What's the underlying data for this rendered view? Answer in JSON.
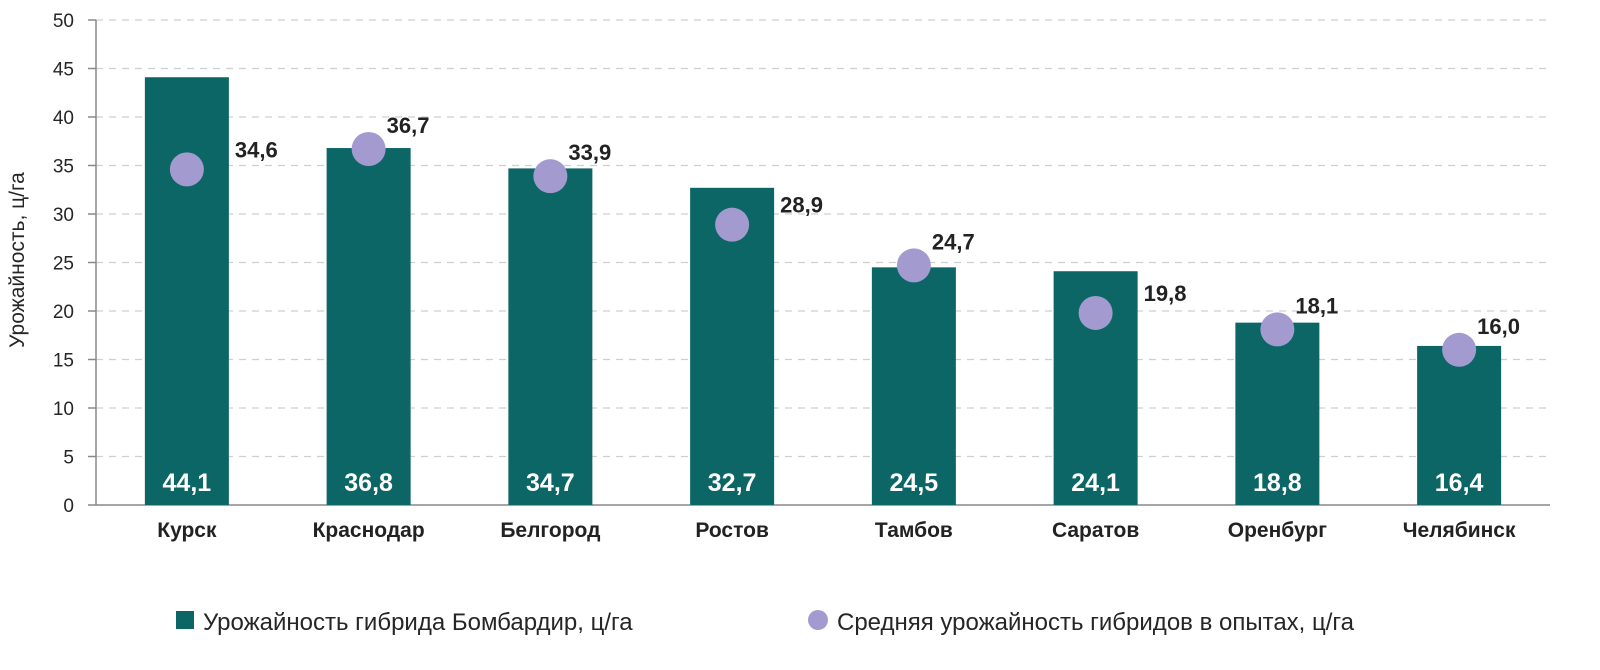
{
  "chart_data": {
    "type": "bar",
    "ylabel": "Урожайность, ц/га",
    "ylim": [
      0,
      50
    ],
    "yticks": [
      0,
      5,
      10,
      15,
      20,
      25,
      30,
      35,
      40,
      45,
      50
    ],
    "grid": true,
    "legend_position": "bottom",
    "categories": [
      "Курск",
      "Краснодар",
      "Белгород",
      "Ростов",
      "Тамбов",
      "Саратов",
      "Оренбург",
      "Челябинск"
    ],
    "series": [
      {
        "name": "Урожайность гибрида Бомбардир, ц/га",
        "kind": "bar",
        "color": "#0c6666",
        "values": [
          44.1,
          36.8,
          34.7,
          32.7,
          24.5,
          24.1,
          18.8,
          16.4
        ],
        "labels": [
          "44,1",
          "36,8",
          "34,7",
          "32,7",
          "24,5",
          "24,1",
          "18,8",
          "16,4"
        ]
      },
      {
        "name": "Средняя урожайность гибридов в опытах, ц/га",
        "kind": "marker",
        "color": "#a39bd0",
        "values": [
          34.6,
          36.7,
          33.9,
          28.9,
          24.7,
          19.8,
          18.1,
          16.0
        ],
        "labels": [
          "34,6",
          "36,7",
          "33,9",
          "28,9",
          "24,7",
          "19,8",
          "18,1",
          "16,0"
        ]
      }
    ]
  }
}
